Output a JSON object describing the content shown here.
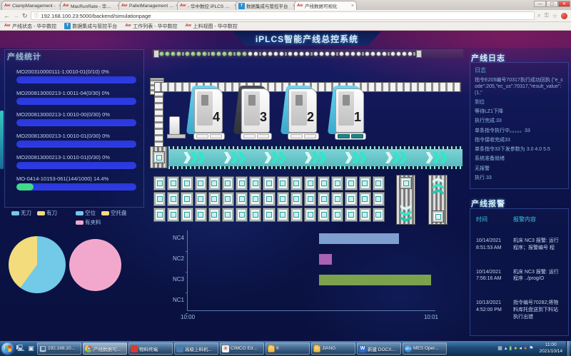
{
  "browser": {
    "tabs": [
      {
        "label": "ClampManagement -",
        "favicon": "aw",
        "active": false
      },
      {
        "label": "MacRunRate - 华中数控",
        "favicon": "aw",
        "active": false
      },
      {
        "label": "PalletManagement - 1",
        "favicon": "aw",
        "active": false
      },
      {
        "label": "- 华中数控 iPLCS 智能制",
        "favicon": "aw",
        "active": false
      },
      {
        "label": "数据集成与管控平台",
        "favicon": "t",
        "active": false
      },
      {
        "label": "产线数据可视化",
        "favicon": "aw",
        "active": true
      }
    ],
    "url": "192.168.100.23:5000/backend/simulationpage",
    "bookmarks": [
      {
        "label": "产线状态 - 华中数控",
        "favicon": "aw"
      },
      {
        "label": "数据集成与管控平台",
        "favicon": "t"
      },
      {
        "label": "工作列表 - 华中数控",
        "favicon": "aw"
      },
      {
        "label": "上料视图 - 华中数控",
        "favicon": "aw"
      }
    ]
  },
  "page": {
    "title": "iPLCS智能产线总控系统",
    "stats": {
      "title": "产线统计",
      "track_color": "#2a38d8",
      "fill_color": "#3fd98a",
      "items": [
        {
          "label": "MO200310000111-1:0010-01(0/10) 0%",
          "progress": 0
        },
        {
          "label": "MO200813000213-1:0011-04(0/30) 0%",
          "progress": 0
        },
        {
          "label": "MO200813000213-1:0010-00(0/30) 0%",
          "progress": 0
        },
        {
          "label": "MO200813000213-1:0010-01(0/30) 0%",
          "progress": 0
        },
        {
          "label": "MO200813000213-1:0010-01(0/30) 0%",
          "progress": 0
        },
        {
          "label": "MO-0414-10153-061(144/1000) 14.4%",
          "progress": 14.4
        }
      ]
    },
    "machines": [
      {
        "number": "4",
        "status": "running"
      },
      {
        "number": "3",
        "status": "stopped"
      },
      {
        "number": "2",
        "status": "running"
      },
      {
        "number": "1",
        "status": "working"
      }
    ],
    "log": {
      "title": "产线日志",
      "subtitle": "日志",
      "entries": [
        "指令E205编号70317执行成功回执 {\"e_code\":205,\"ec_us\":70317,\"result_value\":(1,\"",
        "到位",
        "等待LZ1下降",
        "执行完成.33",
        "单条指令执行中。。。。。33",
        "指令接收完成33",
        "单条指令33下发参数为 3.0 4.0 5.5",
        "系统准备就绪",
        "无报警",
        "执行.33"
      ]
    },
    "alarms": {
      "title": "产线报警",
      "columns": [
        "时间",
        "报警内容"
      ],
      "rows": [
        {
          "time": "10/14/2021 8:51:53 AM",
          "content": "机床 NC3 报警: 运行程序；报警编号 程"
        },
        {
          "time": "10/14/2021 7:56:16 AM",
          "content": "机床 NC3 报警: 运行程序 ../prog/O"
        },
        {
          "time": "10/13/2021 4:52:00 PM",
          "content": "指令编号70282;将物料库托盘送到下料站执行出错"
        }
      ]
    }
  },
  "chart_data": [
    {
      "type": "pie",
      "name": "tool-status",
      "slices": [
        {
          "label": "无刀",
          "value": 60,
          "color": "#72c9e8"
        },
        {
          "label": "有刀",
          "value": 40,
          "color": "#f2dc7c"
        }
      ]
    },
    {
      "type": "pie",
      "name": "pallet-status",
      "slices": [
        {
          "label": "空位",
          "value": 0,
          "color": "#72c9e8"
        },
        {
          "label": "空托盘",
          "value": 0,
          "color": "#f2dc7c"
        },
        {
          "label": "有夹料",
          "value": 100,
          "color": "#f2a8cc"
        }
      ]
    },
    {
      "type": "gantt",
      "name": "nc-timeline",
      "categories": [
        "NC4",
        "NC2",
        "NC3",
        "NC1"
      ],
      "x_ticks": [
        "10:00",
        "10:01"
      ],
      "series": [
        {
          "name": "NC4",
          "start": 0.53,
          "end": 0.85,
          "color": "#7e9fd0"
        },
        {
          "name": "NC2",
          "start": 0.53,
          "end": 0.58,
          "color": "#aa62b4"
        },
        {
          "name": "NC3",
          "start": 0.53,
          "end": 0.98,
          "color": "#7ca24d"
        }
      ]
    }
  ],
  "taskbar": {
    "buttons": [
      {
        "label": "192.168.10...",
        "icon": "remote-desktop",
        "active": false
      },
      {
        "label": "产线数据可...",
        "icon": "chrome",
        "active": true
      },
      {
        "label": "物料终端",
        "icon": "material-terminal",
        "active": false
      },
      {
        "label": "高级上料机...",
        "icon": "loader-app",
        "active": false
      },
      {
        "label": "CIMCO Ed...",
        "icon": "cimco",
        "active": false
      },
      {
        "label": "8",
        "icon": "folder",
        "active": false
      },
      {
        "label": "JIANG",
        "icon": "folder",
        "active": false
      },
      {
        "label": "新建 DOCX...",
        "icon": "wps",
        "active": false
      },
      {
        "label": "MES Oper...",
        "icon": "mes",
        "active": false
      }
    ],
    "tray_icons": [
      {
        "name": "keyboard-icon",
        "glyph": "▦",
        "color": "#d0dce8"
      },
      {
        "name": "up-arrow-icon",
        "glyph": "▴",
        "color": "#e8f0f8"
      },
      {
        "name": "battery-icon",
        "glyph": "▮",
        "color": "#7ed87e"
      },
      {
        "name": "shield-icon",
        "glyph": "●",
        "color": "#e8c838"
      },
      {
        "name": "volume-icon",
        "glyph": "◂",
        "color": "#e8f0f8"
      },
      {
        "name": "action-center-icon",
        "glyph": "●",
        "color": "#e87838"
      },
      {
        "name": "flag-icon",
        "glyph": "⚑",
        "color": "#e8f0f8"
      }
    ],
    "clock": {
      "time": "11:00",
      "date": "2021/10/14"
    }
  }
}
